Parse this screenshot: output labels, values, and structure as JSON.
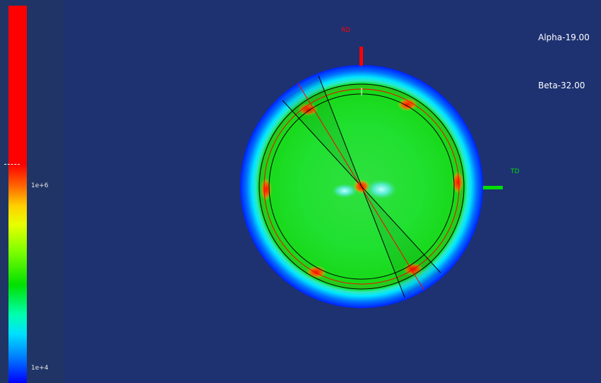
{
  "colorbar": {
    "label_high": "1e+6",
    "label_low": "1e+4"
  },
  "annotations": {
    "alpha": "Alpha-19.00",
    "beta": "Beta-32.00"
  },
  "axes": {
    "rd_label": "RD",
    "td_label": "TD",
    "rd_color": "#ff0000",
    "td_color": "#00dd00"
  }
}
